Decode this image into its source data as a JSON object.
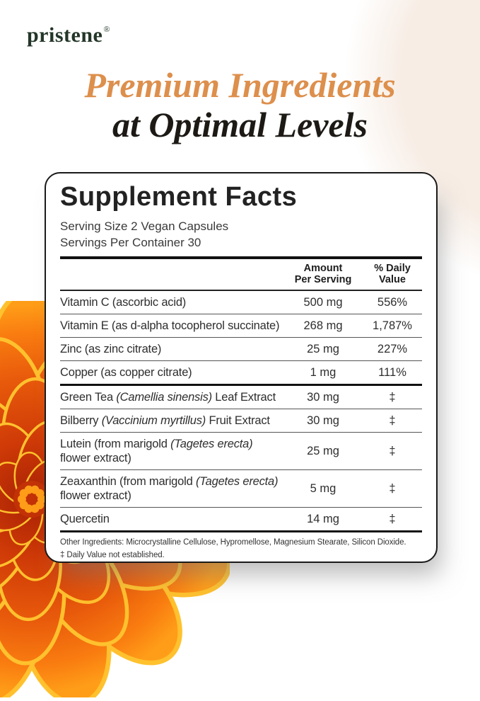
{
  "brand": {
    "logo_text": "pristene",
    "registered_mark": "®",
    "logo_color": "#233629"
  },
  "headline": {
    "line1": "Premium Ingredients",
    "line2": "at Optimal Levels",
    "accent_color": "#dd8f4c",
    "dark_color": "#1d1a16"
  },
  "panel": {
    "title": "Supplement Facts",
    "serving_size": "Serving Size 2 Vegan Capsules",
    "servings_per_container": "Servings Per Container 30",
    "columns": {
      "amount_line1": "Amount",
      "amount_line2": "Per Serving",
      "dv_line1": "% Daily",
      "dv_line2": "Value"
    },
    "rows": [
      {
        "name": [
          {
            "text": "Vitamin C (ascorbic acid)"
          }
        ],
        "amount": "500 mg",
        "dv": "556%"
      },
      {
        "name": [
          {
            "text": "Vitamin E (as d-alpha tocopherol succinate)"
          }
        ],
        "amount": "268 mg",
        "dv": "1,787%"
      },
      {
        "name": [
          {
            "text": "Zinc (as zinc citrate)"
          }
        ],
        "amount": "25 mg",
        "dv": "227%"
      },
      {
        "name": [
          {
            "text": "Copper (as copper citrate)"
          }
        ],
        "amount": "1 mg",
        "dv": "111%"
      },
      {
        "name": [
          {
            "text": "Green Tea "
          },
          {
            "text": "(Camellia sinensis)",
            "italic": true
          },
          {
            "text": " Leaf Extract"
          }
        ],
        "amount": "30 mg",
        "dv": "‡",
        "section_start": true
      },
      {
        "name": [
          {
            "text": "Bilberry "
          },
          {
            "text": "(Vaccinium myrtillus)",
            "italic": true
          },
          {
            "text": " Fruit Extract"
          }
        ],
        "amount": "30 mg",
        "dv": "‡"
      },
      {
        "name": [
          {
            "text": "Lutein (from marigold "
          },
          {
            "text": "(Tagetes erecta)",
            "italic": true
          },
          {
            "text": " flower extract)"
          }
        ],
        "amount": "25 mg",
        "dv": "‡"
      },
      {
        "name": [
          {
            "text": "Zeaxanthin (from marigold "
          },
          {
            "text": "(Tagetes erecta)",
            "italic": true
          },
          {
            "text": " flower extract)"
          }
        ],
        "amount": "5 mg",
        "dv": "‡"
      },
      {
        "name": [
          {
            "text": "Quercetin"
          }
        ],
        "amount": "14 mg",
        "dv": "‡"
      }
    ],
    "footnotes": [
      "Other Ingredients: Microcrystalline Cellulose, Hypromellose, Magnesium Stearate, Silicon Dioxide.",
      "‡ Daily Value not established."
    ]
  },
  "decor": {
    "flower": "marigold-flower",
    "blob_color": "#f7ede5",
    "flower_colors": {
      "dark": "#b32405",
      "mid": "#e04c0a",
      "bright": "#f97c10",
      "rim": "#ffc12e"
    }
  }
}
